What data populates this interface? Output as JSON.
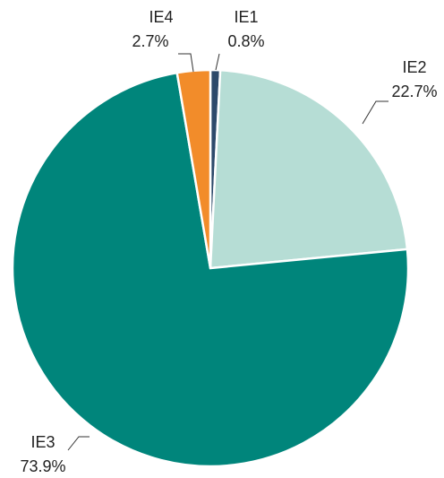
{
  "chart_data": {
    "type": "pie",
    "categories": [
      "IE1",
      "IE2",
      "IE3",
      "IE4"
    ],
    "values": [
      0.8,
      22.7,
      73.9,
      2.7
    ],
    "value_labels": [
      "0.8%",
      "22.7%",
      "73.9%",
      "2.7%"
    ],
    "colors": [
      "#2d4a6b",
      "#b6ddd5",
      "#00857b",
      "#f28c2a"
    ]
  }
}
